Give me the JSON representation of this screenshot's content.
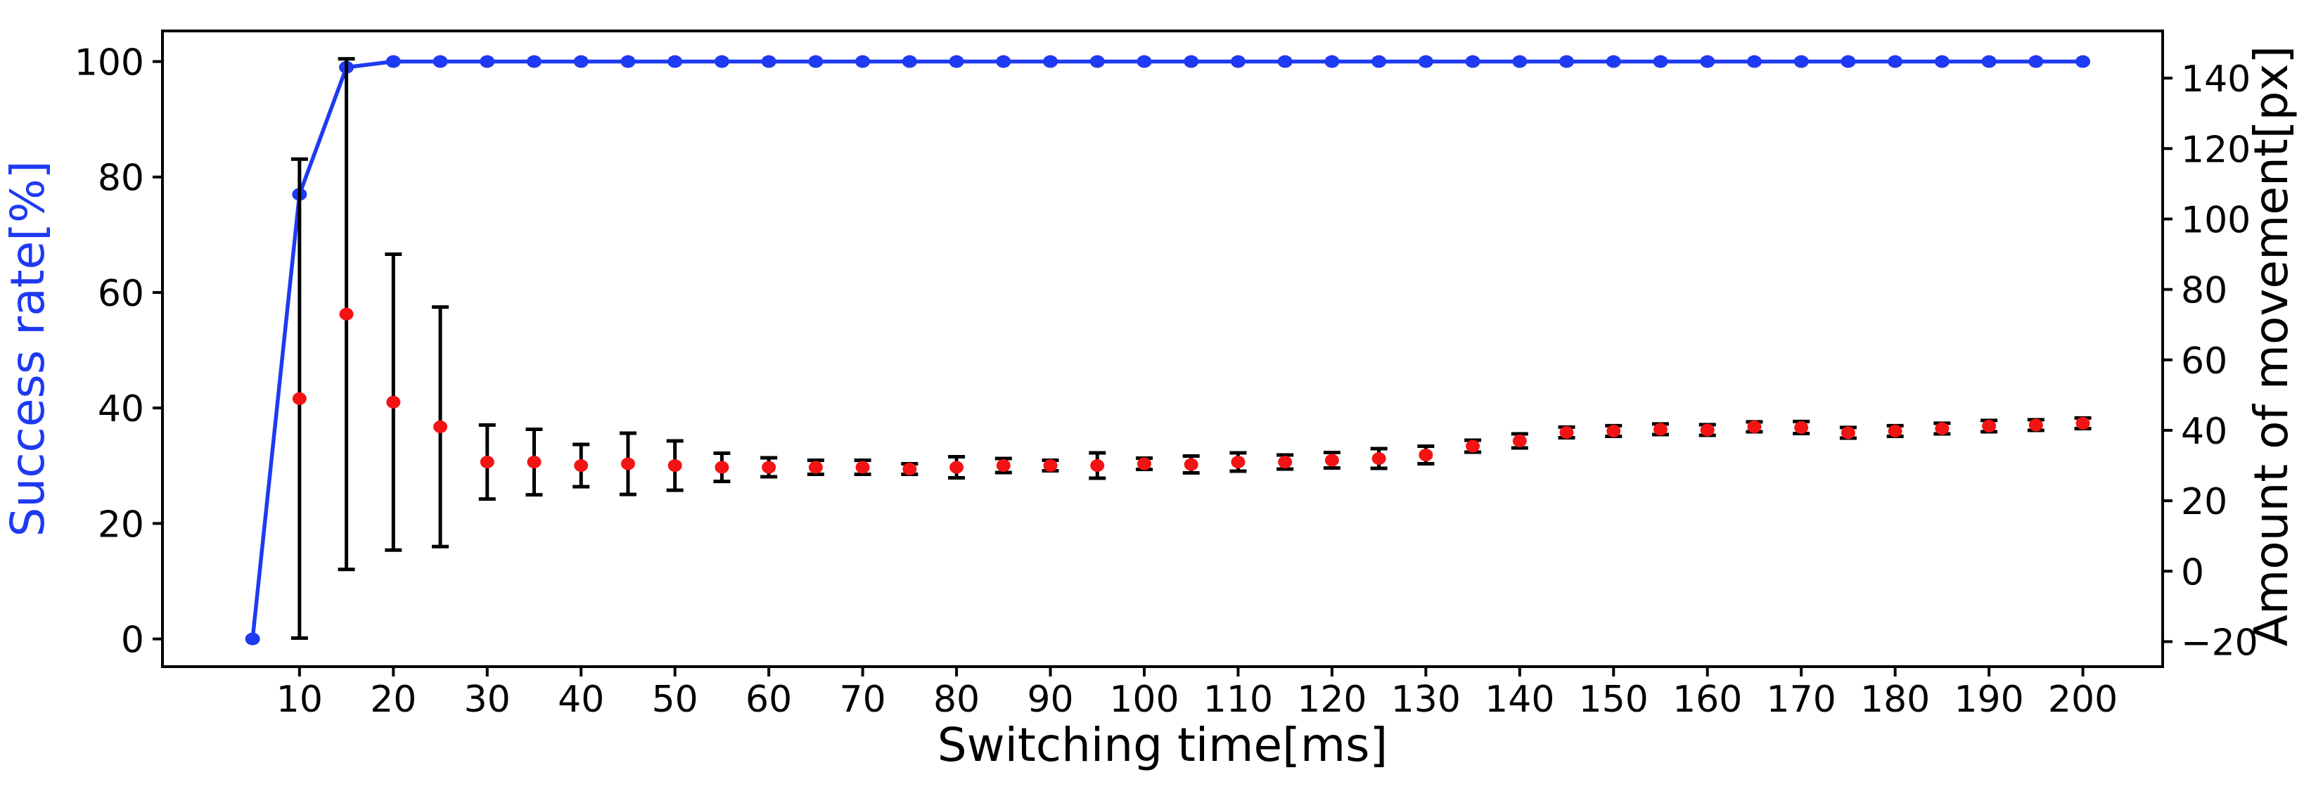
{
  "chart_data": {
    "type": "line",
    "title": "",
    "xlabel": "Switching time[ms]",
    "ylabel_left": "Success rate[%]",
    "ylabel_right": "Amount of movement[px]",
    "grid": false,
    "legend": "none",
    "x_ticks": [
      10,
      20,
      30,
      40,
      50,
      60,
      70,
      80,
      90,
      100,
      110,
      120,
      130,
      140,
      150,
      160,
      170,
      180,
      190,
      200
    ],
    "left_ticks": [
      0,
      20,
      40,
      60,
      80,
      100
    ],
    "right_ticks": [
      -20,
      0,
      20,
      40,
      60,
      80,
      100,
      120,
      140
    ],
    "xlim": [
      -4.6,
      208.5
    ],
    "ylim_left": [
      -4.8,
      105.3
    ],
    "ylim_right": [
      -27.1,
      153.4
    ],
    "colors": {
      "success": "#1e3af2",
      "movement_marker": "#f21414",
      "error_bar": "#000000",
      "axis": "#000000"
    },
    "series": [
      {
        "name": "Success rate[%]",
        "type": "line-markers",
        "axis": "left",
        "color": "#1e3af2",
        "x": [
          5,
          10,
          15,
          20,
          25,
          30,
          35,
          40,
          45,
          50,
          55,
          60,
          65,
          70,
          75,
          80,
          85,
          90,
          95,
          100,
          105,
          110,
          115,
          120,
          125,
          130,
          135,
          140,
          145,
          150,
          155,
          160,
          165,
          170,
          175,
          180,
          185,
          190,
          195,
          200
        ],
        "y": [
          0,
          77,
          99,
          100,
          100,
          100,
          100,
          100,
          100,
          100,
          100,
          100,
          100,
          100,
          100,
          100,
          100,
          100,
          100,
          100,
          100,
          100,
          100,
          100,
          100,
          100,
          100,
          100,
          100,
          100,
          100,
          100,
          100,
          100,
          100,
          100,
          100,
          100,
          100,
          100
        ]
      },
      {
        "name": "Amount of movement[px]",
        "type": "scatter-errorbar",
        "axis": "right",
        "color": "#f21414",
        "x": [
          10,
          15,
          20,
          25,
          30,
          35,
          40,
          45,
          50,
          55,
          60,
          65,
          70,
          75,
          80,
          85,
          90,
          95,
          100,
          105,
          110,
          115,
          120,
          125,
          130,
          135,
          140,
          145,
          150,
          155,
          160,
          165,
          170,
          175,
          180,
          185,
          190,
          195,
          200
        ],
        "y": [
          49,
          73,
          48,
          41,
          31,
          31,
          30,
          30.5,
          30,
          29.5,
          29.5,
          29.5,
          29.5,
          29,
          29.5,
          30,
          30,
          30,
          30.5,
          30.3,
          31,
          31,
          31.5,
          32,
          33,
          35.5,
          37,
          39.4,
          39.8,
          40.3,
          40.1,
          41,
          40.8,
          39.3,
          39.8,
          40.5,
          41.2,
          41.5,
          42
        ],
        "yerr": [
          68,
          72.5,
          42,
          34,
          10.5,
          9.3,
          6,
          8.7,
          7,
          4,
          2.7,
          2,
          2,
          1.5,
          3,
          2,
          1.5,
          3.6,
          1.6,
          2.4,
          2.6,
          2,
          2.2,
          2.8,
          2.5,
          1.7,
          2,
          1.5,
          1.5,
          1.5,
          1.5,
          1.4,
          1.7,
          1.5,
          1.5,
          1.5,
          1.6,
          1.5,
          1.5
        ]
      }
    ]
  }
}
